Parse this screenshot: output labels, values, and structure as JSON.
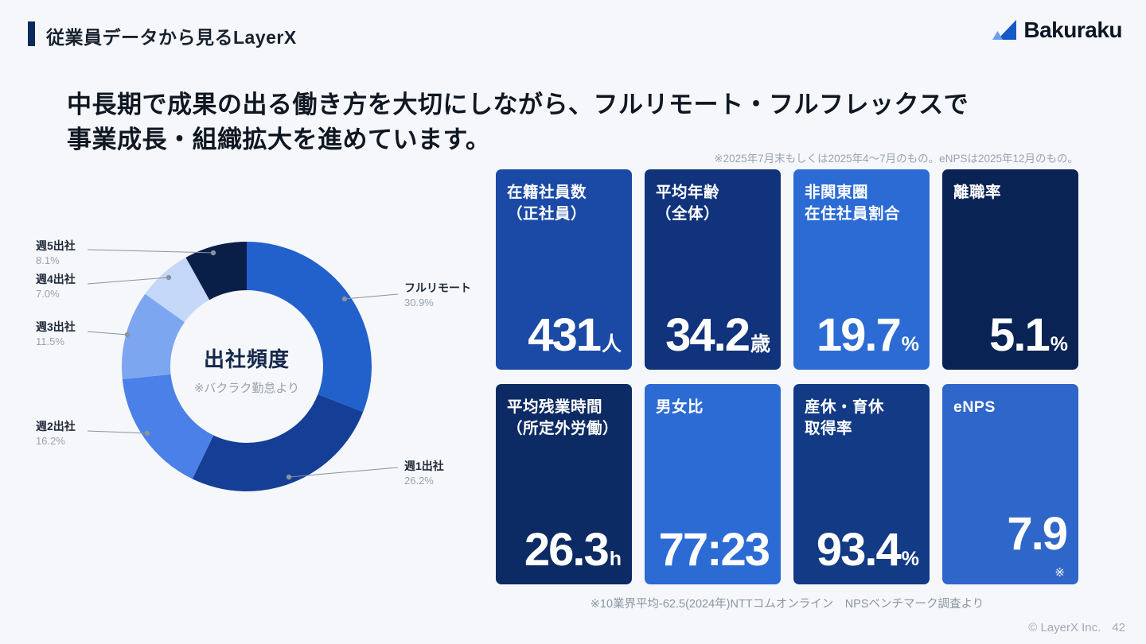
{
  "header": {
    "title": "従業員データから見るLayerX",
    "logo_text": "Bakuraku"
  },
  "headline": {
    "line1": "中長期で成果の出る働き方を大切にしながら、フルリモート・フルフレックスで",
    "line2": "事業成長・組織拡大を進めています。"
  },
  "notes": {
    "top": "※2025年7月末もしくは2025年4〜7月のもの。eNPSは2025年12月のもの。",
    "bottom": "※10業界平均-62.5(2024年)NTTコムオンライン　NPSベンチマーク調査より"
  },
  "chart_data": {
    "type": "pie",
    "donut": true,
    "title": "出社頻度",
    "subtitle": "※バクラク勤怠より",
    "unit": "%",
    "slices": [
      {
        "label": "フルリモート",
        "value": 30.9,
        "color": "#2260cc"
      },
      {
        "label": "週1出社",
        "value": 26.2,
        "color": "#153f96"
      },
      {
        "label": "週2出社",
        "value": 16.2,
        "color": "#4b80e8"
      },
      {
        "label": "週3出社",
        "value": 11.5,
        "color": "#7da6f0"
      },
      {
        "label": "週4出社",
        "value": 7.0,
        "color": "#c5d7f9"
      },
      {
        "label": "週5出社",
        "value": 8.1,
        "color": "#0a1f47"
      }
    ]
  },
  "cards": [
    {
      "title_lines": [
        "在籍社員数",
        "（正社員）"
      ],
      "value": "431",
      "unit": "人",
      "color": "#1a4aa5"
    },
    {
      "title_lines": [
        "平均年齢",
        "（全体）"
      ],
      "value": "34.2",
      "unit": "歳",
      "color": "#10337c"
    },
    {
      "title_lines": [
        "非関東圏",
        "在住社員割合"
      ],
      "value": "19.7",
      "unit": "%",
      "color": "#2c6bd4"
    },
    {
      "title_lines": [
        "離職率"
      ],
      "value": "5.1",
      "unit": "%",
      "color": "#0a2355"
    },
    {
      "title_lines": [
        "平均残業時間",
        "（所定外労働）"
      ],
      "value": "26.3",
      "unit": "h",
      "color": "#0c2a63"
    },
    {
      "title_lines": [
        "男女比"
      ],
      "value": "77:23",
      "unit": "",
      "color": "#2c6bd4"
    },
    {
      "title_lines": [
        "産休・育休",
        "取得率"
      ],
      "value": "93.4",
      "unit": "%",
      "color": "#123a85"
    },
    {
      "title_lines": [
        "eNPS"
      ],
      "value": "7.9",
      "unit": "",
      "footnote": "※",
      "color": "#2f66c9"
    }
  ],
  "footer": {
    "copyright": "© LayerX Inc.",
    "page": "42"
  }
}
